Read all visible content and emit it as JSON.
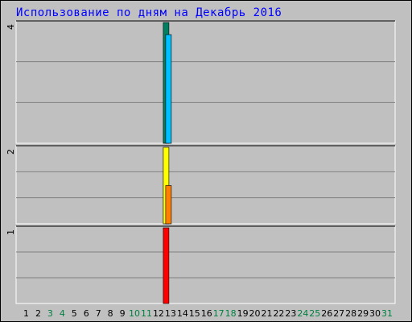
{
  "title": "Использование по дням на Декабрь 2016",
  "colors": {
    "background": "#c0c0c0",
    "grid": "#808080",
    "weekday_label": "#000000",
    "weekend_label": "#008040",
    "title": "#0000ff"
  },
  "chart_data": {
    "type": "bar",
    "title": "Использование по дням на Декабрь 2016",
    "xlabel": "",
    "ylabel": "",
    "grid": true,
    "categories": [
      "1",
      "2",
      "3",
      "4",
      "5",
      "6",
      "7",
      "8",
      "9",
      "10",
      "11",
      "12",
      "13",
      "14",
      "15",
      "16",
      "17",
      "18",
      "19",
      "20",
      "21",
      "22",
      "23",
      "24",
      "25",
      "26",
      "27",
      "28",
      "29",
      "30",
      "31"
    ],
    "weekend_days": [
      "3",
      "4",
      "10",
      "11",
      "17",
      "18",
      "24",
      "25",
      "31"
    ],
    "panels": [
      {
        "ymax": 4,
        "ymax_label": "4",
        "series": [
          {
            "color": "#008060",
            "values": [
              0,
              0,
              0,
              0,
              0,
              0,
              0,
              0,
              0,
              0,
              0,
              0,
              4,
              0,
              0,
              0,
              0,
              0,
              0,
              0,
              0,
              0,
              0,
              0,
              0,
              0,
              0,
              0,
              0,
              0,
              0
            ]
          },
          {
            "color": "#00c0ff",
            "values": [
              0,
              0,
              0,
              0,
              0,
              0,
              0,
              0,
              0,
              0,
              0,
              0,
              3.6,
              0,
              0,
              0,
              0,
              0,
              0,
              0,
              0,
              0,
              0,
              0,
              0,
              0,
              0,
              0,
              0,
              0,
              0
            ]
          }
        ]
      },
      {
        "ymax": 2,
        "ymax_label": "2",
        "series": [
          {
            "color": "#ffff00",
            "values": [
              0,
              0,
              0,
              0,
              0,
              0,
              0,
              0,
              0,
              0,
              0,
              0,
              2,
              0,
              0,
              0,
              0,
              0,
              0,
              0,
              0,
              0,
              0,
              0,
              0,
              0,
              0,
              0,
              0,
              0,
              0
            ]
          },
          {
            "color": "#ff8000",
            "values": [
              0,
              0,
              0,
              0,
              0,
              0,
              0,
              0,
              0,
              0,
              0,
              0,
              1,
              0,
              0,
              0,
              0,
              0,
              0,
              0,
              0,
              0,
              0,
              0,
              0,
              0,
              0,
              0,
              0,
              0,
              0
            ]
          }
        ]
      },
      {
        "ymax": 1,
        "ymax_label": "1",
        "series": [
          {
            "color": "#ff0000",
            "values": [
              0,
              0,
              0,
              0,
              0,
              0,
              0,
              0,
              0,
              0,
              0,
              0,
              1,
              0,
              0,
              0,
              0,
              0,
              0,
              0,
              0,
              0,
              0,
              0,
              0,
              0,
              0,
              0,
              0,
              0,
              0
            ]
          }
        ]
      }
    ]
  }
}
